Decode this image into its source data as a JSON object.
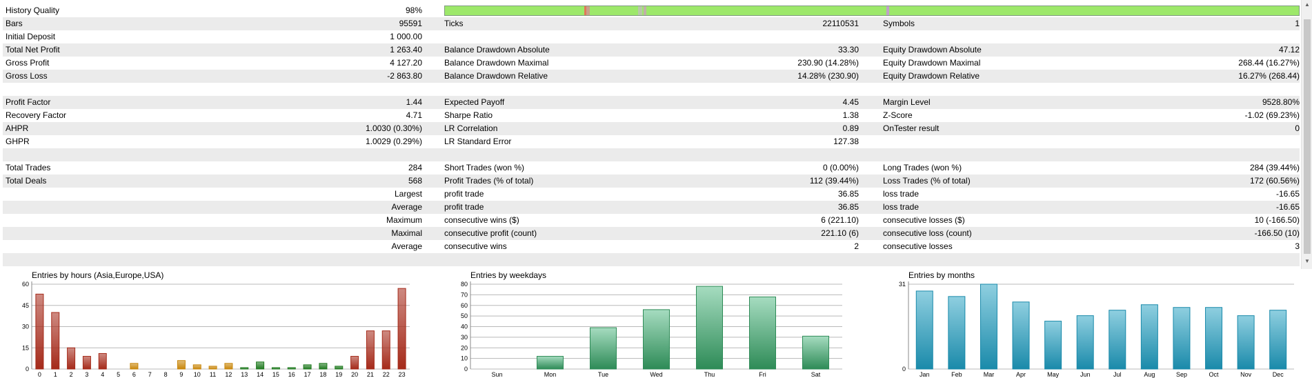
{
  "report": {
    "history_quality": {
      "label": "History Quality",
      "value": "98%"
    },
    "rows": [
      {
        "k1": "Bars",
        "v1": "95591",
        "k2": "Ticks",
        "v2": "22110531",
        "k3": "Symbols",
        "v3": "1"
      },
      {
        "k1": "Initial Deposit",
        "v1": "1 000.00",
        "k2": "",
        "v2": "",
        "k3": "",
        "v3": ""
      },
      {
        "k1": "Total Net Profit",
        "v1": "1 263.40",
        "k2": "Balance Drawdown Absolute",
        "v2": "33.30",
        "k3": "Equity Drawdown Absolute",
        "v3": "47.12"
      },
      {
        "k1": "Gross Profit",
        "v1": "4 127.20",
        "k2": "Balance Drawdown Maximal",
        "v2": "230.90 (14.28%)",
        "k3": "Equity Drawdown Maximal",
        "v3": "268.44 (16.27%)"
      },
      {
        "k1": "Gross Loss",
        "v1": "-2 863.80",
        "k2": "Balance Drawdown Relative",
        "v2": "14.28% (230.90)",
        "k3": "Equity Drawdown Relative",
        "v3": "16.27% (268.44)"
      },
      {
        "k1": "",
        "v1": "",
        "k2": "",
        "v2": "",
        "k3": "",
        "v3": ""
      },
      {
        "k1": "Profit Factor",
        "v1": "1.44",
        "k2": "Expected Payoff",
        "v2": "4.45",
        "k3": "Margin Level",
        "v3": "9528.80%"
      },
      {
        "k1": "Recovery Factor",
        "v1": "4.71",
        "k2": "Sharpe Ratio",
        "v2": "1.38",
        "k3": "Z-Score",
        "v3": "-1.02 (69.23%)"
      },
      {
        "k1": "AHPR",
        "v1": "1.0030 (0.30%)",
        "k2": "LR Correlation",
        "v2": "0.89",
        "k3": "OnTester result",
        "v3": "0"
      },
      {
        "k1": "GHPR",
        "v1": "1.0029 (0.29%)",
        "k2": "LR Standard Error",
        "v2": "127.38",
        "k3": "",
        "v3": ""
      },
      {
        "k1": "",
        "v1": "",
        "k2": "",
        "v2": "",
        "k3": "",
        "v3": ""
      },
      {
        "k1": "Total Trades",
        "v1": "284",
        "k2": "Short Trades (won %)",
        "v2": "0 (0.00%)",
        "k3": "Long Trades (won %)",
        "v3": "284 (39.44%)"
      },
      {
        "k1": "Total Deals",
        "v1": "568",
        "k2": "Profit Trades (% of total)",
        "v2": "112 (39.44%)",
        "k3": "Loss Trades (% of total)",
        "v3": "172 (60.56%)"
      },
      {
        "k1": "",
        "v1": "Largest",
        "k2": "profit trade",
        "v2": "36.85",
        "k3": "loss trade",
        "v3": "-16.65"
      },
      {
        "k1": "",
        "v1": "Average",
        "k2": "profit trade",
        "v2": "36.85",
        "k3": "loss trade",
        "v3": "-16.65"
      },
      {
        "k1": "",
        "v1": "Maximum",
        "k2": "consecutive wins ($)",
        "v2": "6 (221.10)",
        "k3": "consecutive losses ($)",
        "v3": "10 (-166.50)"
      },
      {
        "k1": "",
        "v1": "Maximal",
        "k2": "consecutive profit (count)",
        "v2": "221.10 (6)",
        "k3": "consecutive loss (count)",
        "v3": "-166.50 (10)"
      },
      {
        "k1": "",
        "v1": "Average",
        "k2": "consecutive wins",
        "v2": "2",
        "k3": "consecutive losses",
        "v3": "3"
      },
      {
        "k1": "",
        "v1": "",
        "k2": "",
        "v2": "",
        "k3": "",
        "v3": ""
      }
    ]
  },
  "colors": {
    "quality_bar": "#9de86a",
    "hours_asia": "#a52a1a",
    "hours_europe": "#c8860a",
    "hours_usa": "#1f7a1f",
    "weekdays": "#2e8b57",
    "months": "#1a8aaa"
  },
  "chart_data": [
    {
      "type": "bar",
      "title": "Entries by hours (Asia,Europe,USA)",
      "categories": [
        "0",
        "1",
        "2",
        "3",
        "4",
        "5",
        "6",
        "7",
        "8",
        "9",
        "10",
        "11",
        "12",
        "13",
        "14",
        "15",
        "16",
        "17",
        "18",
        "19",
        "20",
        "21",
        "22",
        "23"
      ],
      "values": [
        53,
        40,
        15,
        9,
        11,
        0,
        4,
        0,
        0,
        6,
        3,
        2,
        4,
        1,
        5,
        1,
        1,
        3,
        4,
        2,
        9,
        27,
        27,
        57
      ],
      "groups": [
        "asia",
        "asia",
        "asia",
        "asia",
        "asia",
        "asia",
        "europe",
        "europe",
        "europe",
        "europe",
        "europe",
        "europe",
        "europe",
        "usa",
        "usa",
        "usa",
        "usa",
        "usa",
        "usa",
        "usa",
        "asia",
        "asia",
        "asia",
        "asia"
      ],
      "yticks": [
        0,
        15,
        30,
        45,
        60
      ],
      "ylim": [
        0,
        60
      ],
      "xlabel": "",
      "ylabel": ""
    },
    {
      "type": "bar",
      "title": "Entries by weekdays",
      "categories": [
        "Sun",
        "Mon",
        "Tue",
        "Wed",
        "Thu",
        "Fri",
        "Sat"
      ],
      "values": [
        0,
        12,
        39,
        56,
        78,
        68,
        31
      ],
      "yticks": [
        0,
        10,
        20,
        30,
        40,
        50,
        60,
        70,
        80
      ],
      "ylim": [
        0,
        80
      ],
      "xlabel": "",
      "ylabel": ""
    },
    {
      "type": "bar",
      "title": "Entries by months",
      "categories": [
        "Jan",
        "Feb",
        "Mar",
        "Apr",
        "May",
        "Jun",
        "Jul",
        "Aug",
        "Sep",
        "Oct",
        "Nov",
        "Dec"
      ],
      "values": [
        28.5,
        26.5,
        31,
        24.5,
        17.5,
        19.5,
        21.5,
        23.5,
        22.5,
        22.5,
        19.5,
        21.5
      ],
      "yticks": [
        0,
        31
      ],
      "ylim": [
        0,
        31
      ],
      "xlabel": "",
      "ylabel": ""
    }
  ]
}
